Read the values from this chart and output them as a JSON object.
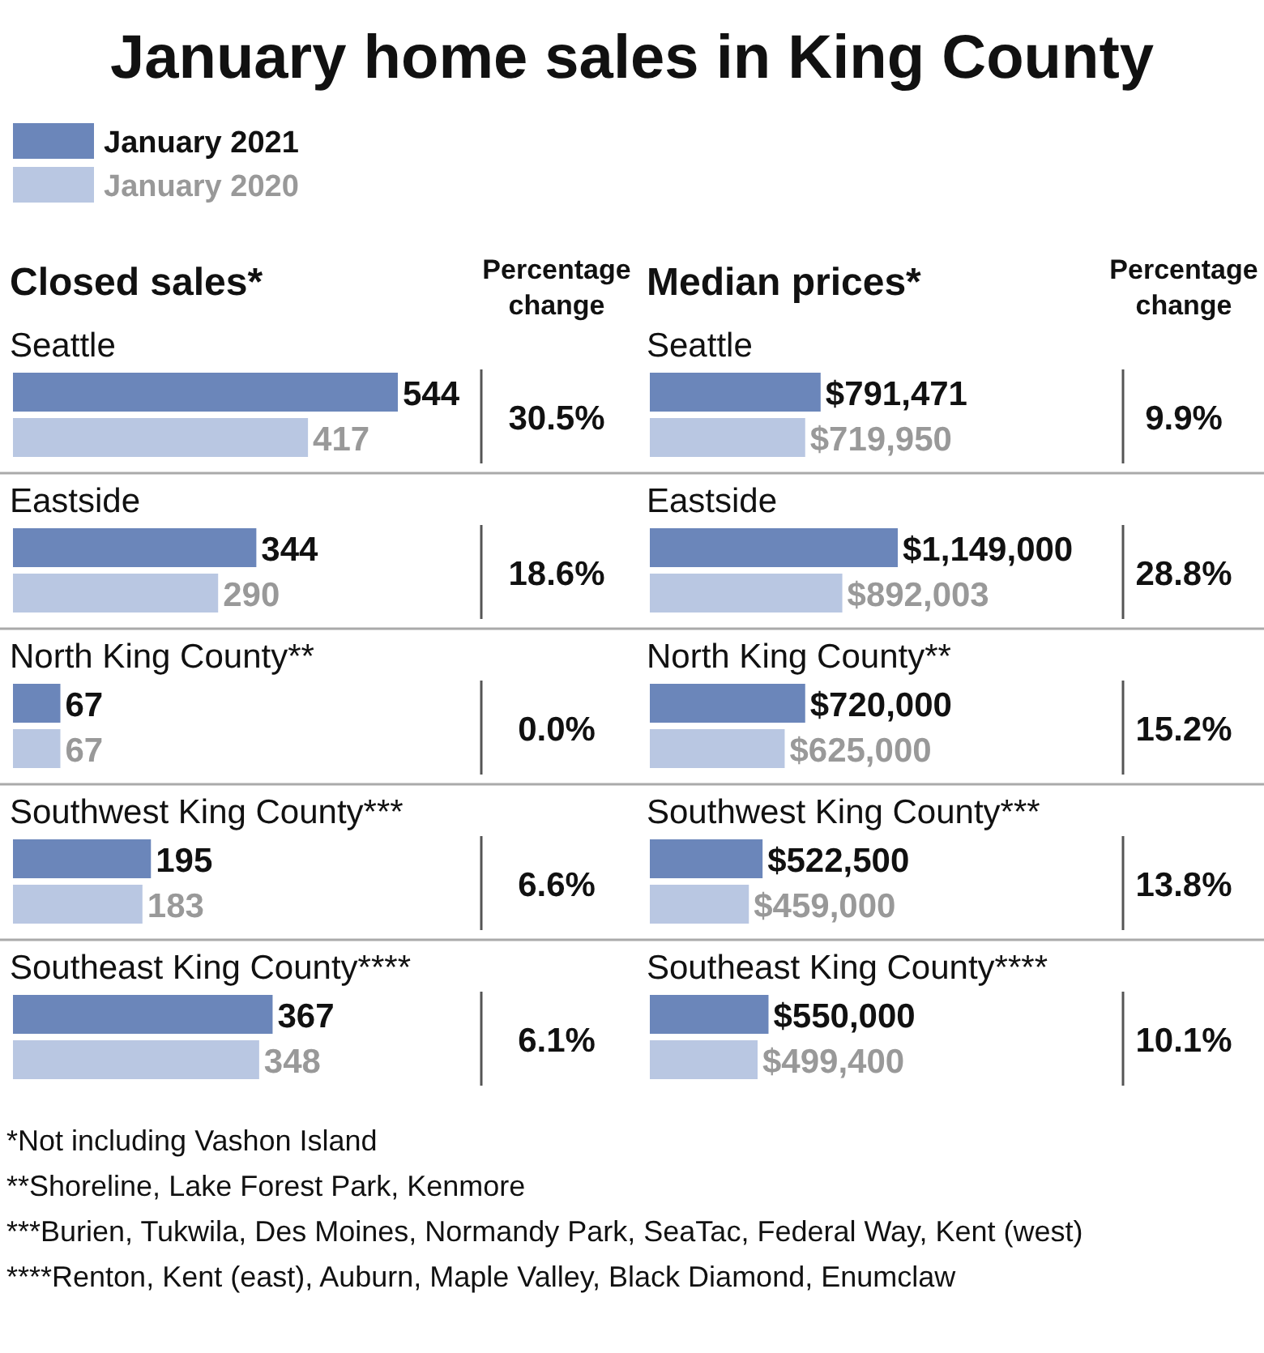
{
  "chart_data": [
    {
      "type": "bar",
      "orientation": "horizontal",
      "title": "January home sales in King County",
      "subtitle": "Closed sales*",
      "categories": [
        "Seattle",
        "Eastside",
        "North King County**",
        "Southwest King County***",
        "Southeast King County****"
      ],
      "series": [
        {
          "name": "January 2021",
          "color": "#6b86ba",
          "values": [
            544,
            344,
            67,
            195,
            367
          ]
        },
        {
          "name": "January 2020",
          "color": "#b9c7e2",
          "values": [
            417,
            290,
            67,
            183,
            348
          ]
        }
      ],
      "data_labels": true,
      "legend": "top left",
      "annotations": [
        "Percentage change",
        "30.5%",
        "18.6%",
        "0.0%",
        "6.6%",
        "6.1%"
      ]
    },
    {
      "type": "bar",
      "orientation": "horizontal",
      "title": "Median prices*",
      "categories": [
        "Seattle",
        "Eastside",
        "North King County**",
        "Southwest King County***",
        "Southeast King County****"
      ],
      "series": [
        {
          "color": "#6b86ba",
          "values": [
            791471,
            1149000,
            720000,
            522500,
            550000
          ],
          "value_labels": [
            "$791,471",
            "$1,149,000",
            "$720,000",
            "$522,500",
            "$550,000"
          ]
        },
        {
          "color": "#b9c7e2",
          "values": [
            719950,
            892003,
            625000,
            459000,
            499400
          ],
          "value_labels": [
            "$719,950",
            "$892,003",
            "$625,000",
            "$459,000",
            "$499,400"
          ]
        }
      ],
      "annotations": [
        "Percentage change",
        "9.9%",
        "28.8%",
        "15.2%",
        "13.8%",
        "10.1%"
      ]
    },
    {
      "type": "other",
      "annotations": [
        "*Not including Vashon Island",
        "**Shoreline, Lake Forest Park, Kenmore",
        "***Burien, Tukwila, Des Moines, Normandy Park, SeaTac, Federal Way, Kent (west)",
        "****Renton, Kent (east), Auburn, Maple Valley, Black Diamond, Enumclaw"
      ]
    }
  ]
}
